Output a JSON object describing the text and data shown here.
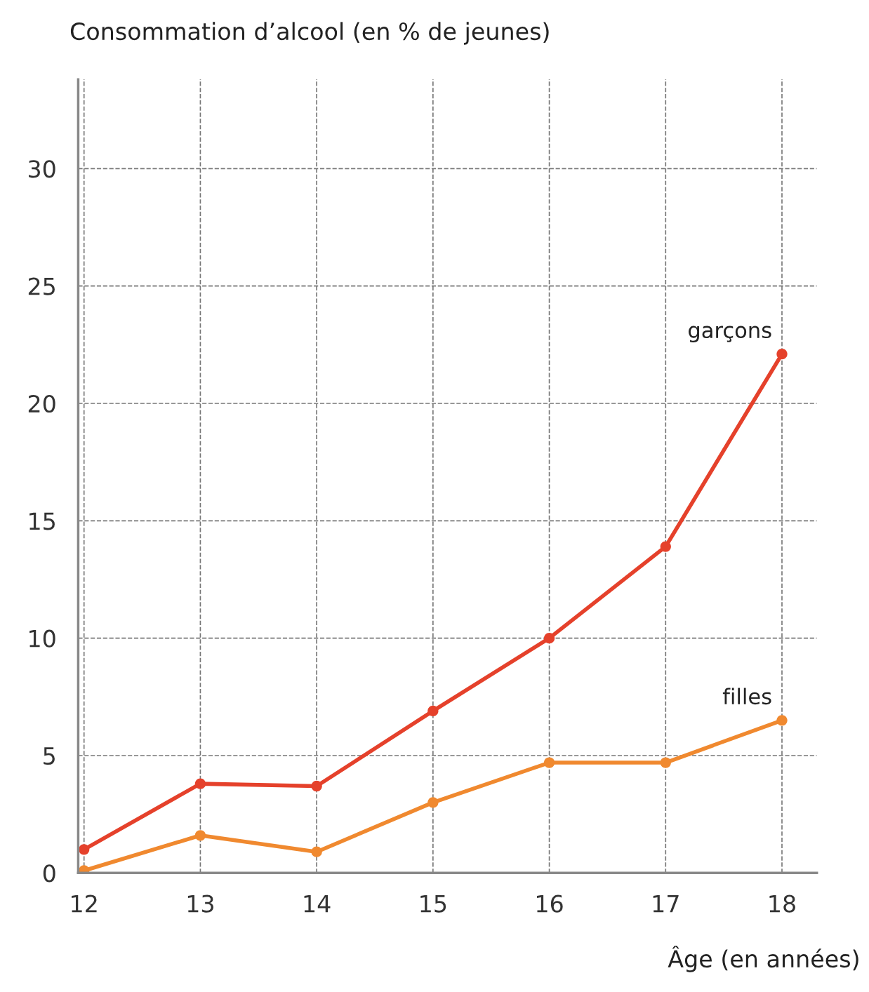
{
  "chart_data": {
    "type": "line",
    "ylabel": "Consommation d’alcool (en % de jeunes)",
    "xlabel": "Âge (en années)",
    "x": [
      12,
      13,
      14,
      15,
      16,
      17,
      18
    ],
    "series": [
      {
        "name": "garçons",
        "color": "#e5412b",
        "values": [
          1.0,
          3.8,
          3.7,
          6.9,
          10.0,
          13.9,
          22.1
        ]
      },
      {
        "name": "filles",
        "color": "#f0892f",
        "values": [
          0.1,
          1.6,
          0.9,
          3.0,
          4.7,
          4.7,
          6.5
        ]
      }
    ],
    "xlim": [
      11.95,
      18.3
    ],
    "xticks": [
      12,
      13,
      14,
      15,
      16,
      17,
      18
    ],
    "ylim": [
      0,
      33.8
    ],
    "yticks": [
      0,
      5,
      10,
      15,
      20,
      25,
      30
    ],
    "grid": true,
    "marker": "circle",
    "line_style": "solid",
    "legend": false
  }
}
